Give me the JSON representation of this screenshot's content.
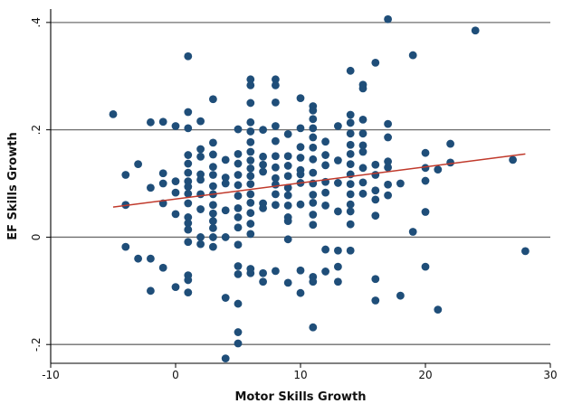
{
  "chart_data": {
    "type": "scatter",
    "title": "",
    "xlabel": "Motor Skills Growth",
    "ylabel": "EF Skills Growth",
    "xlim": [
      -10,
      30
    ],
    "ylim": [
      -0.2,
      0.4
    ],
    "x_ticks": [
      -10,
      0,
      10,
      20,
      30
    ],
    "x_tick_labels": [
      "-10",
      "0",
      "10",
      "20",
      "30"
    ],
    "y_ticks": [
      -0.2,
      0,
      0.2,
      0.4
    ],
    "y_tick_labels": [
      "-.2",
      "0",
      ".2",
      ".4"
    ],
    "grid": "horizontal",
    "colors": {
      "points": "#1f4e79",
      "fit_line": "#c0392b",
      "grid": "#6e6e6e"
    },
    "fit_line": {
      "x": [
        -5,
        28
      ],
      "y": [
        0.056,
        0.155
      ]
    },
    "series": [
      {
        "type": "scatter",
        "points": [
          [
            -5,
            0.229
          ],
          [
            -4,
            0.116
          ],
          [
            -4,
            0.06
          ],
          [
            -4,
            -0.018
          ],
          [
            -3,
            0.136
          ],
          [
            -3,
            -0.04
          ],
          [
            -2,
            0.214
          ],
          [
            -2,
            0.092
          ],
          [
            -2,
            -0.04
          ],
          [
            -2,
            -0.1
          ],
          [
            -1,
            0.215
          ],
          [
            -1,
            0.119
          ],
          [
            -1,
            0.1
          ],
          [
            -1,
            0.063
          ],
          [
            -1,
            -0.057
          ],
          [
            0,
            0.207
          ],
          [
            0,
            0.104
          ],
          [
            0,
            0.083
          ],
          [
            0,
            0.043
          ],
          [
            0,
            -0.093
          ],
          [
            1,
            0.337
          ],
          [
            1,
            0.233
          ],
          [
            1,
            0.203
          ],
          [
            1,
            0.153
          ],
          [
            1,
            0.137
          ],
          [
            1,
            0.12
          ],
          [
            1,
            0.104
          ],
          [
            1,
            0.094
          ],
          [
            1,
            0.081
          ],
          [
            1,
            0.063
          ],
          [
            1,
            0.037
          ],
          [
            1,
            0.026
          ],
          [
            1,
            0.014
          ],
          [
            1,
            -0.009
          ],
          [
            1,
            -0.071
          ],
          [
            1,
            -0.08
          ],
          [
            1,
            -0.103
          ],
          [
            2,
            0.216
          ],
          [
            2,
            0.164
          ],
          [
            2,
            0.15
          ],
          [
            2,
            0.117
          ],
          [
            2,
            0.107
          ],
          [
            2,
            0.08
          ],
          [
            2,
            0.052
          ],
          [
            2,
            0.0
          ],
          [
            2,
            -0.013
          ],
          [
            3,
            0.257
          ],
          [
            3,
            0.176
          ],
          [
            3,
            0.154
          ],
          [
            3,
            0.131
          ],
          [
            3,
            0.116
          ],
          [
            3,
            0.095
          ],
          [
            3,
            0.08
          ],
          [
            3,
            0.06
          ],
          [
            3,
            0.044
          ],
          [
            3,
            0.03
          ],
          [
            3,
            0.017
          ],
          [
            3,
            0.0
          ],
          [
            3,
            -0.018
          ],
          [
            4,
            0.144
          ],
          [
            4,
            0.111
          ],
          [
            4,
            0.1
          ],
          [
            4,
            0.05
          ],
          [
            4,
            0.0
          ],
          [
            4,
            -0.113
          ],
          [
            4,
            -0.226
          ],
          [
            5,
            0.201
          ],
          [
            5,
            0.155
          ],
          [
            5,
            0.137
          ],
          [
            5,
            0.116
          ],
          [
            5,
            0.097
          ],
          [
            5,
            0.077
          ],
          [
            5,
            0.054
          ],
          [
            5,
            0.037
          ],
          [
            5,
            0.018
          ],
          [
            5,
            -0.014
          ],
          [
            5,
            -0.054
          ],
          [
            5,
            -0.069
          ],
          [
            5,
            -0.124
          ],
          [
            5,
            -0.177
          ],
          [
            5,
            -0.198
          ],
          [
            6,
            0.294
          ],
          [
            6,
            0.283
          ],
          [
            6,
            0.25
          ],
          [
            6,
            0.214
          ],
          [
            6,
            0.197
          ],
          [
            6,
            0.177
          ],
          [
            6,
            0.159
          ],
          [
            6,
            0.143
          ],
          [
            6,
            0.128
          ],
          [
            6,
            0.114
          ],
          [
            6,
            0.099
          ],
          [
            6,
            0.08
          ],
          [
            6,
            0.064
          ],
          [
            6,
            0.045
          ],
          [
            6,
            0.025
          ],
          [
            6,
            0.006
          ],
          [
            6,
            -0.059
          ],
          [
            6,
            -0.067
          ],
          [
            7,
            0.2
          ],
          [
            7,
            0.15
          ],
          [
            7,
            0.135
          ],
          [
            7,
            0.122
          ],
          [
            7,
            0.063
          ],
          [
            7,
            0.054
          ],
          [
            7,
            -0.067
          ],
          [
            7,
            -0.083
          ],
          [
            8,
            0.294
          ],
          [
            8,
            0.283
          ],
          [
            8,
            0.251
          ],
          [
            8,
            0.207
          ],
          [
            8,
            0.179
          ],
          [
            8,
            0.151
          ],
          [
            8,
            0.13
          ],
          [
            8,
            0.11
          ],
          [
            8,
            0.098
          ],
          [
            8,
            0.08
          ],
          [
            8,
            0.06
          ],
          [
            8,
            -0.063
          ],
          [
            9,
            0.192
          ],
          [
            9,
            0.151
          ],
          [
            9,
            0.133
          ],
          [
            9,
            0.114
          ],
          [
            9,
            0.092
          ],
          [
            9,
            0.078
          ],
          [
            9,
            0.059
          ],
          [
            9,
            0.037
          ],
          [
            9,
            0.03
          ],
          [
            9,
            -0.004
          ],
          [
            9,
            -0.085
          ],
          [
            10,
            0.259
          ],
          [
            10,
            0.203
          ],
          [
            10,
            0.168
          ],
          [
            10,
            0.148
          ],
          [
            10,
            0.125
          ],
          [
            10,
            0.117
          ],
          [
            10,
            0.101
          ],
          [
            10,
            0.061
          ],
          [
            10,
            -0.062
          ],
          [
            10,
            -0.104
          ],
          [
            11,
            0.244
          ],
          [
            11,
            0.236
          ],
          [
            11,
            0.22
          ],
          [
            11,
            0.203
          ],
          [
            11,
            0.186
          ],
          [
            11,
            0.167
          ],
          [
            11,
            0.145
          ],
          [
            11,
            0.12
          ],
          [
            11,
            0.1
          ],
          [
            11,
            0.079
          ],
          [
            11,
            0.064
          ],
          [
            11,
            0.042
          ],
          [
            11,
            0.023
          ],
          [
            11,
            -0.074
          ],
          [
            11,
            -0.083
          ],
          [
            11,
            -0.168
          ],
          [
            12,
            0.178
          ],
          [
            12,
            0.153
          ],
          [
            12,
            0.134
          ],
          [
            12,
            0.103
          ],
          [
            12,
            0.083
          ],
          [
            12,
            0.059
          ],
          [
            12,
            -0.023
          ],
          [
            12,
            -0.064
          ],
          [
            13,
            0.207
          ],
          [
            13,
            0.143
          ],
          [
            13,
            0.101
          ],
          [
            13,
            0.048
          ],
          [
            13,
            -0.025
          ],
          [
            13,
            -0.055
          ],
          [
            13,
            -0.083
          ],
          [
            14,
            0.31
          ],
          [
            14,
            0.228
          ],
          [
            14,
            0.213
          ],
          [
            14,
            0.193
          ],
          [
            14,
            0.172
          ],
          [
            14,
            0.155
          ],
          [
            14,
            0.136
          ],
          [
            14,
            0.117
          ],
          [
            14,
            0.099
          ],
          [
            14,
            0.08
          ],
          [
            14,
            0.061
          ],
          [
            14,
            0.048
          ],
          [
            14,
            0.024
          ],
          [
            14,
            -0.025
          ],
          [
            15,
            0.284
          ],
          [
            15,
            0.277
          ],
          [
            15,
            0.219
          ],
          [
            15,
            0.193
          ],
          [
            15,
            0.171
          ],
          [
            15,
            0.159
          ],
          [
            15,
            0.129
          ],
          [
            15,
            0.102
          ],
          [
            15,
            0.081
          ],
          [
            16,
            0.325
          ],
          [
            16,
            0.135
          ],
          [
            16,
            0.116
          ],
          [
            16,
            0.087
          ],
          [
            16,
            0.07
          ],
          [
            16,
            0.04
          ],
          [
            16,
            -0.078
          ],
          [
            16,
            -0.118
          ],
          [
            17,
            0.406
          ],
          [
            17,
            0.211
          ],
          [
            17,
            0.186
          ],
          [
            17,
            0.141
          ],
          [
            17,
            0.13
          ],
          [
            17,
            0.098
          ],
          [
            17,
            0.078
          ],
          [
            18,
            0.1
          ],
          [
            18,
            -0.109
          ],
          [
            19,
            0.339
          ],
          [
            19,
            0.01
          ],
          [
            20,
            0.157
          ],
          [
            20,
            0.129
          ],
          [
            20,
            0.105
          ],
          [
            20,
            0.047
          ],
          [
            20,
            -0.055
          ],
          [
            21,
            0.126
          ],
          [
            21,
            -0.135
          ],
          [
            22,
            0.174
          ],
          [
            22,
            0.139
          ],
          [
            24,
            0.385
          ],
          [
            27,
            0.144
          ],
          [
            28,
            -0.026
          ]
        ]
      }
    ]
  }
}
